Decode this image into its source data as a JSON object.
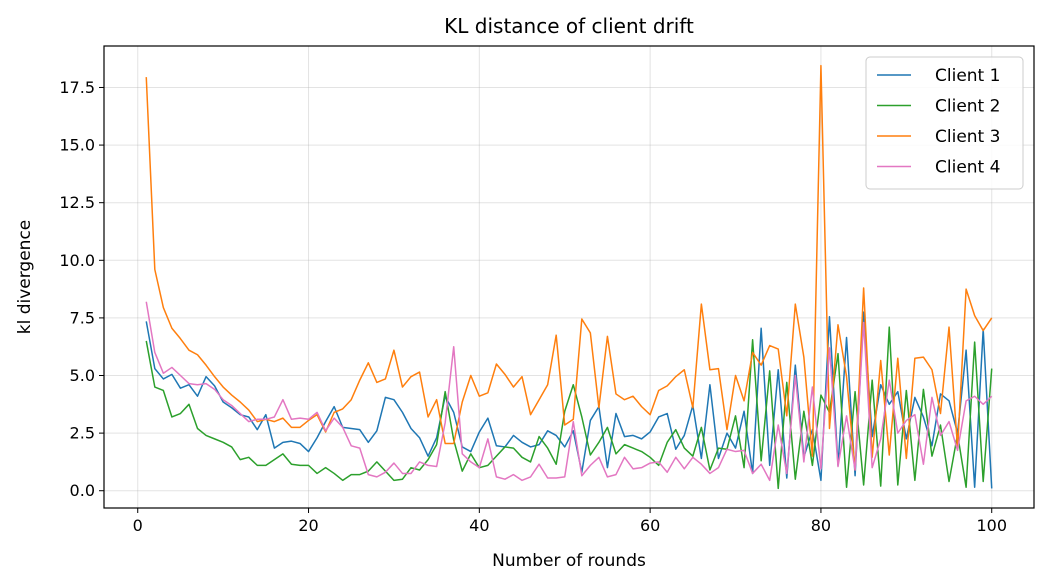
{
  "chart_data": {
    "type": "line",
    "title": "KL distance of client drift",
    "xlabel": "Number of rounds",
    "ylabel": "kl divergence",
    "xlim": [
      -3.95,
      104.95
    ],
    "ylim": [
      -0.75,
      19.3
    ],
    "xticks": [
      0,
      20,
      40,
      60,
      80,
      100
    ],
    "yticks": [
      0.0,
      2.5,
      5.0,
      7.5,
      10.0,
      12.5,
      15.0,
      17.5
    ],
    "xtick_labels": [
      "0",
      "20",
      "40",
      "60",
      "80",
      "100"
    ],
    "ytick_labels": [
      "0.0",
      "2.5",
      "5.0",
      "7.5",
      "10.0",
      "12.5",
      "15.0",
      "17.5"
    ],
    "grid": true,
    "legend_position": "top-right",
    "x": [
      1,
      2,
      3,
      4,
      5,
      6,
      7,
      8,
      9,
      10,
      11,
      12,
      13,
      14,
      15,
      16,
      17,
      18,
      19,
      20,
      21,
      22,
      23,
      24,
      25,
      26,
      27,
      28,
      29,
      30,
      31,
      32,
      33,
      34,
      35,
      36,
      37,
      38,
      39,
      40,
      41,
      42,
      43,
      44,
      45,
      46,
      47,
      48,
      49,
      50,
      51,
      52,
      53,
      54,
      55,
      56,
      57,
      58,
      59,
      60,
      61,
      62,
      63,
      64,
      65,
      66,
      67,
      68,
      69,
      70,
      71,
      72,
      73,
      74,
      75,
      76,
      77,
      78,
      79,
      80,
      81,
      82,
      83,
      84,
      85,
      86,
      87,
      88,
      89,
      90,
      91,
      92,
      93,
      94,
      95,
      96,
      97,
      98,
      99,
      100
    ],
    "series": [
      {
        "name": "Client 1",
        "color": "#1f77b4",
        "values": [
          7.35,
          5.3,
          4.85,
          5.05,
          4.45,
          4.6,
          4.1,
          4.95,
          4.55,
          3.85,
          3.6,
          3.3,
          3.2,
          2.65,
          3.3,
          1.85,
          2.1,
          2.15,
          2.05,
          1.7,
          2.3,
          3.0,
          3.65,
          2.75,
          2.7,
          2.65,
          2.1,
          2.6,
          4.05,
          3.95,
          3.4,
          2.7,
          2.3,
          1.5,
          2.3,
          4.1,
          3.4,
          1.9,
          1.7,
          2.55,
          3.15,
          1.95,
          1.9,
          2.4,
          2.1,
          1.9,
          2.0,
          2.6,
          2.4,
          1.9,
          2.6,
          0.8,
          3.05,
          3.65,
          1.0,
          3.35,
          2.35,
          2.4,
          2.25,
          2.55,
          3.2,
          3.35,
          1.8,
          2.4,
          3.7,
          1.4,
          4.6,
          1.4,
          2.5,
          1.85,
          3.45,
          0.75,
          7.05,
          1.1,
          5.25,
          0.55,
          5.45,
          1.45,
          2.65,
          0.45,
          7.55,
          1.1,
          6.65,
          0.65,
          7.75,
          2.35,
          4.6,
          3.75,
          4.3,
          2.25,
          4.05,
          3.2,
          1.95,
          4.2,
          3.9,
          2.5,
          6.1,
          0.15,
          7.0,
          0.1
        ]
      },
      {
        "name": "Client 2",
        "color": "#2ca02c",
        "values": [
          6.5,
          4.5,
          4.35,
          3.2,
          3.35,
          3.75,
          2.7,
          2.4,
          2.25,
          2.1,
          1.9,
          1.35,
          1.45,
          1.1,
          1.1,
          1.35,
          1.6,
          1.15,
          1.1,
          1.1,
          0.75,
          1.0,
          0.75,
          0.45,
          0.7,
          0.7,
          0.85,
          1.25,
          0.85,
          0.45,
          0.5,
          1.0,
          0.9,
          1.35,
          2.0,
          4.3,
          2.2,
          0.85,
          1.6,
          1.0,
          1.1,
          1.5,
          1.9,
          1.85,
          1.45,
          1.25,
          2.35,
          1.85,
          1.15,
          3.45,
          4.6,
          3.2,
          1.55,
          2.1,
          2.75,
          1.6,
          2.0,
          1.85,
          1.7,
          1.45,
          1.1,
          2.1,
          2.65,
          1.85,
          1.5,
          2.75,
          0.9,
          1.85,
          1.8,
          3.25,
          1.0,
          6.55,
          1.3,
          5.2,
          0.1,
          4.7,
          0.5,
          3.45,
          1.1,
          4.15,
          3.4,
          5.95,
          0.15,
          4.3,
          0.25,
          4.8,
          0.2,
          7.1,
          0.25,
          4.35,
          0.45,
          4.4,
          1.5,
          2.85,
          0.4,
          2.45,
          0.15,
          6.45,
          0.4,
          5.3
        ]
      },
      {
        "name": "Client 3",
        "color": "#ff7f0e",
        "values": [
          17.95,
          9.6,
          7.95,
          7.05,
          6.6,
          6.1,
          5.9,
          5.45,
          4.95,
          4.5,
          4.15,
          3.85,
          3.5,
          3.0,
          3.1,
          3.0,
          3.15,
          2.75,
          2.75,
          3.05,
          3.3,
          2.55,
          3.4,
          3.55,
          3.95,
          4.8,
          5.55,
          4.7,
          4.85,
          6.1,
          4.5,
          4.95,
          5.15,
          3.2,
          3.95,
          2.05,
          2.05,
          3.85,
          5.0,
          4.1,
          4.25,
          5.5,
          5.05,
          4.5,
          4.95,
          3.3,
          3.95,
          4.6,
          6.75,
          2.85,
          3.1,
          7.45,
          6.85,
          3.6,
          6.7,
          4.2,
          3.95,
          4.1,
          3.65,
          3.3,
          4.35,
          4.55,
          4.95,
          5.25,
          3.6,
          8.1,
          5.25,
          5.3,
          2.65,
          5.0,
          3.9,
          6.0,
          5.45,
          6.3,
          6.15,
          3.25,
          8.1,
          5.8,
          1.5,
          18.45,
          2.7,
          7.2,
          4.95,
          0.9,
          8.8,
          1.45,
          5.65,
          1.55,
          5.75,
          1.4,
          5.75,
          5.8,
          5.25,
          3.35,
          7.1,
          1.85,
          8.75,
          7.6,
          6.95,
          7.5
        ]
      },
      {
        "name": "Client 4",
        "color": "#e377c2",
        "values": [
          8.2,
          6.0,
          5.1,
          5.35,
          5.0,
          4.65,
          4.6,
          4.65,
          4.4,
          3.95,
          3.7,
          3.35,
          3.0,
          3.1,
          3.1,
          3.2,
          3.95,
          3.1,
          3.15,
          3.1,
          3.4,
          2.6,
          3.15,
          2.75,
          1.95,
          1.85,
          0.7,
          0.6,
          0.8,
          1.2,
          0.75,
          0.75,
          1.25,
          1.1,
          1.05,
          2.95,
          6.25,
          1.6,
          1.25,
          1.0,
          2.25,
          0.6,
          0.5,
          0.7,
          0.45,
          0.6,
          1.15,
          0.55,
          0.55,
          0.6,
          3.0,
          0.65,
          1.1,
          1.45,
          0.6,
          0.7,
          1.45,
          0.95,
          1.0,
          1.2,
          1.25,
          0.8,
          1.45,
          0.95,
          1.45,
          1.15,
          0.75,
          1.0,
          1.8,
          1.7,
          1.75,
          0.75,
          1.15,
          0.45,
          2.85,
          0.75,
          5.0,
          1.25,
          4.5,
          0.95,
          6.2,
          1.05,
          3.25,
          0.9,
          7.3,
          1.0,
          2.25,
          4.8,
          2.5,
          3.05,
          3.3,
          1.15,
          4.05,
          2.4,
          3.0,
          1.75,
          3.9,
          4.1,
          3.75,
          4.1
        ]
      }
    ]
  }
}
